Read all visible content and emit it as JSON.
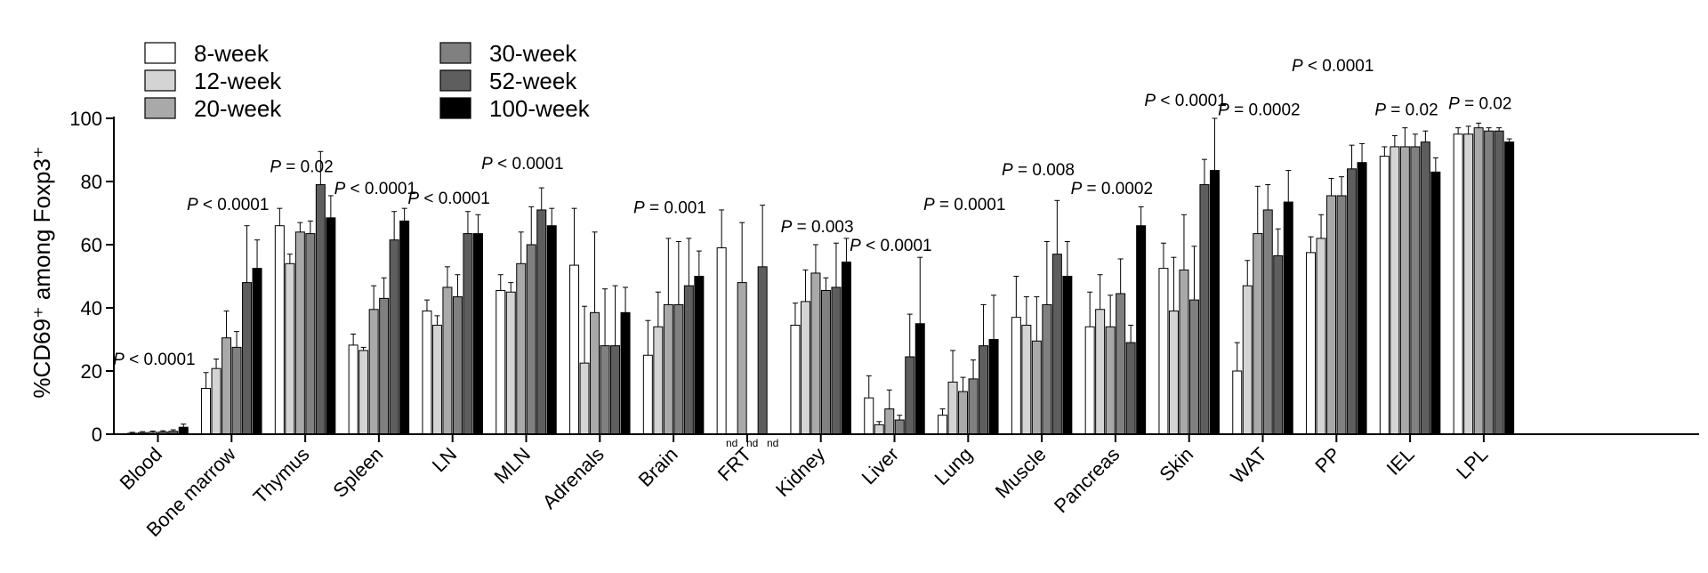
{
  "chart_data": {
    "type": "bar",
    "ylabel": "%CD69⁺ among Foxp3⁺",
    "ylim": [
      0,
      100
    ],
    "yticks": [
      "0",
      "20",
      "40",
      "60",
      "80",
      "100"
    ],
    "grid": false,
    "legend_position": "top-left",
    "series": [
      {
        "name": "8-week",
        "color": "#ffffff"
      },
      {
        "name": "12-week",
        "color": "#d4d4d4"
      },
      {
        "name": "20-week",
        "color": "#a9a9a9"
      },
      {
        "name": "30-week",
        "color": "#808080"
      },
      {
        "name": "52-week",
        "color": "#5e5e5e"
      },
      {
        "name": "100-week",
        "color": "#000000"
      }
    ],
    "categories": [
      {
        "name": "Blood",
        "values": [
          0.3,
          0.5,
          0.6,
          0.7,
          0.9,
          2.2
        ],
        "errors": [
          0.3,
          0.3,
          0.4,
          0.4,
          0.5,
          1.0
        ],
        "p": "P < 0.0001",
        "p_y": 22
      },
      {
        "name": "Bone marrow",
        "values": [
          14.5,
          20.8,
          30.5,
          27.5,
          48,
          52.5
        ],
        "errors": [
          5,
          3,
          8.5,
          5,
          18,
          9
        ],
        "p": "P < 0.0001",
        "p_y": 71
      },
      {
        "name": "Thymus",
        "values": [
          66,
          54,
          64,
          63.5,
          79,
          68.5
        ],
        "errors": [
          5.5,
          3,
          3,
          4,
          10.5,
          7
        ],
        "p": "P = 0.02",
        "p_y": 83
      },
      {
        "name": "Spleen",
        "values": [
          28.2,
          26.5,
          39.5,
          43,
          61.5,
          67.5
        ],
        "errors": [
          3.5,
          1,
          7.5,
          6.5,
          9,
          4
        ],
        "p": "P < 0.0001",
        "p_y": 76
      },
      {
        "name": "LN",
        "values": [
          39,
          34.5,
          46.5,
          43.5,
          63.5,
          63.5
        ],
        "errors": [
          3.5,
          3,
          6.5,
          7,
          7,
          6
        ],
        "p": "P < 0.0001",
        "p_y": 73
      },
      {
        "name": "MLN",
        "values": [
          45.5,
          45,
          54,
          60,
          71,
          66
        ],
        "errors": [
          5,
          3,
          10,
          12,
          7,
          5.5
        ],
        "p": "P < 0.0001",
        "p_y": 84
      },
      {
        "name": "Adrenals",
        "values": [
          53.5,
          22.5,
          38.5,
          28,
          28,
          38.5
        ],
        "errors": [
          18,
          18,
          25.5,
          18,
          19,
          8
        ],
        "p": "",
        "p_y": 0
      },
      {
        "name": "Brain",
        "values": [
          25,
          34,
          41,
          41,
          47,
          50
        ],
        "errors": [
          11,
          11,
          21,
          20,
          15,
          8
        ],
        "p": "P = 0.001",
        "p_y": 70
      },
      {
        "name": "FRT",
        "values": [
          59,
          0,
          48,
          0,
          53,
          0
        ],
        "errors": [
          12,
          0,
          19,
          0,
          19.5,
          0
        ],
        "nd": [
          false,
          true,
          false,
          true,
          false,
          true
        ],
        "p": "",
        "p_y": 0
      },
      {
        "name": "Kidney",
        "values": [
          34.5,
          42,
          51,
          45.5,
          46.5,
          54.5
        ],
        "errors": [
          7,
          10,
          9,
          4,
          14,
          7.5
        ],
        "p": "P = 0.003",
        "p_y": 64
      },
      {
        "name": "Liver",
        "values": [
          11.5,
          3,
          8,
          4.5,
          24.5,
          35
        ],
        "errors": [
          7,
          1,
          6,
          1.5,
          13.5,
          21
        ],
        "p": "P < 0.0001",
        "p_y": 58
      },
      {
        "name": "Lung",
        "values": [
          6,
          16.5,
          13.5,
          17.5,
          28,
          30
        ],
        "errors": [
          2,
          10,
          4.5,
          6,
          13,
          14
        ],
        "p": "P = 0.0001",
        "p_y": 71
      },
      {
        "name": "Muscle",
        "values": [
          37,
          34.5,
          29.5,
          41,
          57,
          50
        ],
        "errors": [
          13,
          9,
          14,
          20,
          17,
          11
        ],
        "p": "P = 0.008",
        "p_y": 82
      },
      {
        "name": "Pancreas",
        "values": [
          34,
          39.5,
          34,
          44.5,
          29,
          66
        ],
        "errors": [
          11,
          11,
          10,
          11,
          5.5,
          6
        ],
        "p": "P = 0.0002",
        "p_y": 76
      },
      {
        "name": "Skin",
        "values": [
          52.5,
          39,
          52,
          42.5,
          79,
          83.5
        ],
        "errors": [
          8,
          17,
          17.5,
          17,
          8,
          16.5
        ],
        "p": "P < 0.0001",
        "p_y": 104
      },
      {
        "name": "WAT",
        "values": [
          20,
          47,
          63.5,
          71,
          56.5,
          73.5
        ],
        "errors": [
          9,
          8,
          15,
          8,
          8.5,
          10
        ],
        "p": "P = 0.0002",
        "p_y": 101
      },
      {
        "name": "PP",
        "values": [
          57.5,
          62,
          75.5,
          75.5,
          84,
          86
        ],
        "errors": [
          5,
          7.5,
          5.5,
          6,
          7.5,
          6
        ],
        "p": "P < 0.0001",
        "p_y": 115
      },
      {
        "name": "IEL",
        "values": [
          88,
          91,
          91,
          91,
          92.5,
          83
        ],
        "errors": [
          3,
          3.5,
          6,
          4,
          3.5,
          4.5
        ],
        "p": "P = 0.02",
        "p_y": 101
      },
      {
        "name": "LPL",
        "values": [
          95,
          95,
          97,
          96,
          96,
          92.5
        ],
        "errors": [
          2,
          2.5,
          1.5,
          1,
          1,
          1
        ],
        "p": "P = 0.02",
        "p_y": 103
      }
    ],
    "nd_label": "nd"
  }
}
